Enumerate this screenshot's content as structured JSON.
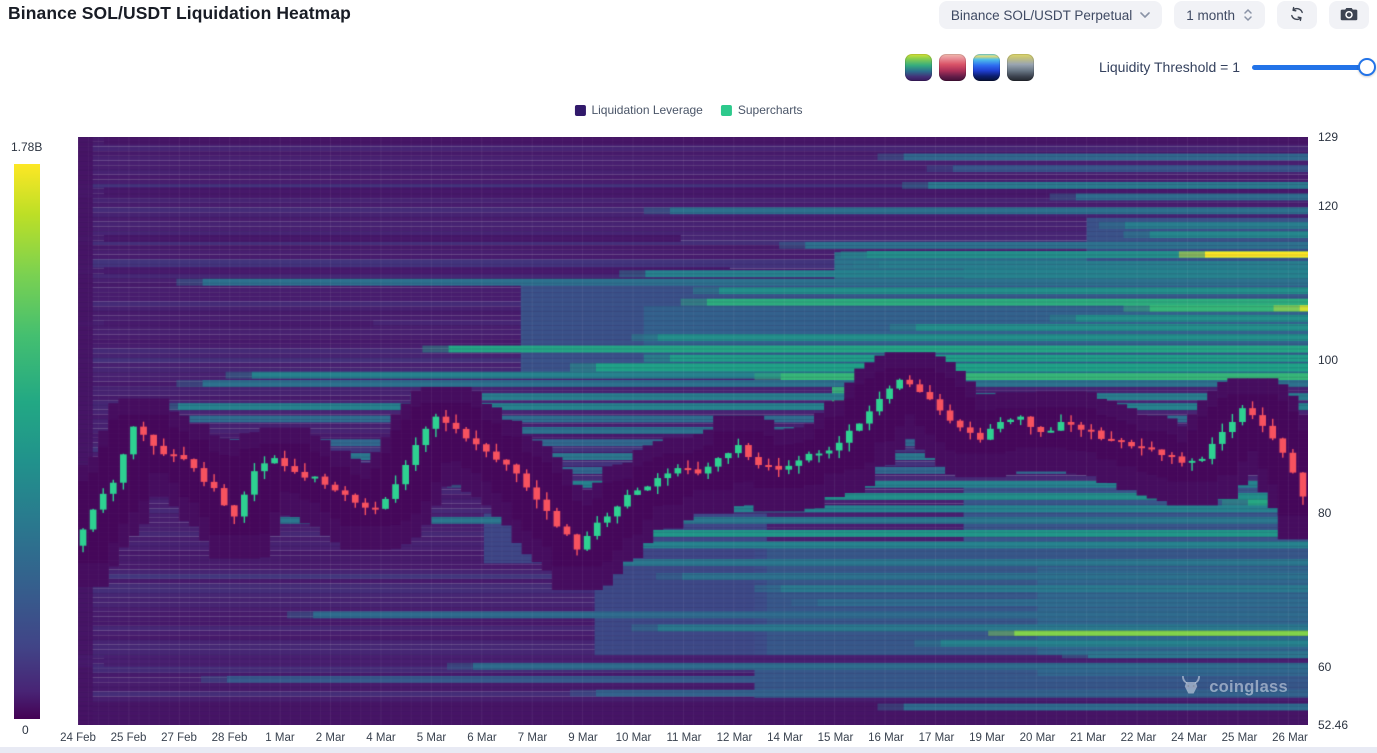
{
  "header": {
    "title": "Binance SOL/USDT Liquidation Heatmap"
  },
  "controls": {
    "symbol_dropdown": {
      "value": "Binance SOL/USDT Perpetual"
    },
    "period_dropdown": {
      "value": "1 month"
    },
    "threshold": {
      "label": "Liquidity Threshold = 1",
      "value": 1,
      "slider_position": "max"
    },
    "palette_buttons": [
      {
        "name": "viridis"
      },
      {
        "name": "red-magma"
      },
      {
        "name": "blue"
      },
      {
        "name": "gray-yellow"
      }
    ]
  },
  "legend": {
    "items": [
      {
        "label": "Liquidation Leverage",
        "color": "#31196b"
      },
      {
        "label": "Supercharts",
        "color": "#2dc98c"
      }
    ]
  },
  "colorbar": {
    "max_label": "1.78B",
    "min_label": "0",
    "colormap": "viridis"
  },
  "watermark": {
    "text": "coinglass"
  },
  "chart_data": {
    "type": "heatmap",
    "subtype": "liquidation-heatmap-with-candlestick-overlay",
    "title": "Binance SOL/USDT Liquidation Heatmap",
    "colormap": "viridis",
    "colorbar": {
      "min_label": "0",
      "max_label": "1.78B"
    },
    "y_axis": {
      "min": 52.46,
      "max": 129,
      "side": "right",
      "ticks": [
        {
          "value": 129,
          "label": "129"
        },
        {
          "value": 120,
          "label": "120"
        },
        {
          "value": 100,
          "label": "100"
        },
        {
          "value": 80,
          "label": "80"
        },
        {
          "value": 60,
          "label": "60"
        },
        {
          "value": 52.46,
          "label": "52.46"
        }
      ]
    },
    "x_axis": {
      "labels": [
        "24 Feb",
        "25 Feb",
        "27 Feb",
        "28 Feb",
        "1 Mar",
        "2 Mar",
        "4 Mar",
        "5 Mar",
        "6 Mar",
        "7 Mar",
        "9 Mar",
        "10 Mar",
        "11 Mar",
        "12 Mar",
        "14 Mar",
        "15 Mar",
        "16 Mar",
        "17 Mar",
        "19 Mar",
        "20 Mar",
        "21 Mar",
        "22 Mar",
        "24 Mar",
        "25 Mar",
        "26 Mar"
      ]
    },
    "price_series": {
      "type": "candlestick",
      "up_color": "#2ed191",
      "down_color": "#f7525f",
      "closes": [
        75.8,
        80.5,
        84.0,
        91.3,
        88.8,
        87.6,
        85.9,
        83.3,
        79.6,
        85.5,
        87.2,
        85.4,
        84.8,
        83.0,
        81.4,
        80.6,
        83.8,
        88.9,
        92.6,
        91.0,
        89.0,
        87.0,
        85.2,
        81.8,
        78.3,
        75.3,
        78.8,
        80.9,
        83.0,
        84.6,
        85.9,
        85.2,
        87.2,
        88.9,
        86.3,
        85.7,
        86.9,
        87.8,
        89.2,
        91.7,
        94.9,
        97.4,
        95.8,
        93.4,
        91.2,
        89.6,
        91.9,
        92.6,
        90.6,
        91.9,
        90.9,
        89.7,
        89.3,
        88.6,
        87.6,
        86.6,
        87.1,
        90.6,
        93.7,
        91.4,
        87.9,
        82.2
      ]
    },
    "liquidity_zones": [
      {
        "p0": 97,
        "p1": 114,
        "sx": 0.615,
        "v": 0.46
      },
      {
        "p0": 98,
        "p1": 112,
        "sx": 0.72,
        "v": 0.5
      },
      {
        "p0": 98,
        "p1": 110,
        "sx": 0.36,
        "v": 0.3
      },
      {
        "p0": 99,
        "p1": 107,
        "sx": 0.46,
        "v": 0.36
      },
      {
        "p0": 56,
        "p1": 76,
        "sx": 0.55,
        "v": 0.33
      },
      {
        "p0": 58,
        "p1": 73,
        "sx": 0.78,
        "v": 0.38
      },
      {
        "p0": 112,
        "p1": 118.5,
        "sx": 0.82,
        "v": 0.3
      },
      {
        "p0": 76,
        "p1": 84,
        "sx": 0.72,
        "v": 0.32
      },
      {
        "p0": 93.5,
        "p1": 96.5,
        "sx": 0.613,
        "ex": 0.66,
        "v": 0.72
      },
      {
        "p0": 73.5,
        "p1": 80,
        "sx": 0.33,
        "ex": 0.56,
        "v": 0.25
      },
      {
        "p0": 60,
        "p1": 74,
        "sx": 0.42,
        "ex": 0.56,
        "v": 0.26
      },
      {
        "p0": 52.46,
        "p1": 55.4,
        "sx": 0,
        "v": 0.08
      },
      {
        "p0": 52.46,
        "p1": 129,
        "sx": 0,
        "ex": 0.012,
        "v": 0.08
      }
    ],
    "bands_format": "[price, x_start_frac, intensity_0to1, thickness_price_units?, x_end_frac?]",
    "liquidity_bands": [
      [
        128.5,
        0,
        0.09,
        1.0,
        1
      ],
      [
        121.8,
        0,
        0.1,
        1.3,
        1
      ],
      [
        115.8,
        0,
        0.1,
        0.9,
        0.49
      ],
      [
        111.6,
        0,
        0.11,
        0.9,
        0.53
      ],
      [
        104.7,
        0,
        0.11,
        0.8,
        0.24
      ],
      [
        60.8,
        0,
        0.13,
        1.5,
        1
      ],
      [
        126.4,
        0.65,
        0.38
      ],
      [
        124.9,
        0.69,
        0.3
      ],
      [
        122.7,
        0.67,
        0.46
      ],
      [
        121.2,
        0.79,
        0.4
      ],
      [
        119.4,
        0.46,
        0.42
      ],
      [
        117.5,
        0.83,
        0.48
      ],
      [
        116.3,
        0.85,
        0.52
      ],
      [
        114.9,
        0.57,
        0.42
      ],
      [
        113.7,
        0.62,
        0.55
      ],
      [
        113.7,
        0.895,
        1.0,
        0.8
      ],
      [
        112.4,
        0.63,
        0.48
      ],
      [
        111.2,
        0.44,
        0.5
      ],
      [
        110.1,
        0.08,
        0.42
      ],
      [
        109.0,
        0.5,
        0.55
      ],
      [
        107.5,
        0.49,
        0.68
      ],
      [
        106.7,
        0.85,
        0.72
      ],
      [
        106.7,
        0.972,
        0.95,
        0.8
      ],
      [
        105.4,
        0.79,
        0.55
      ],
      [
        104.2,
        0.66,
        0.55
      ],
      [
        102.9,
        0.45,
        0.55
      ],
      [
        101.4,
        0.28,
        0.64
      ],
      [
        100.2,
        0.46,
        0.6
      ],
      [
        99.0,
        0.4,
        0.62,
        1.1
      ],
      [
        98.0,
        0.12,
        0.5
      ],
      [
        97.8,
        0.55,
        0.72
      ],
      [
        96.9,
        0.08,
        0.42
      ],
      [
        95.2,
        0.27,
        0.48
      ],
      [
        93.9,
        0.06,
        0.5
      ],
      [
        92.3,
        0.04,
        0.4
      ],
      [
        90.8,
        0.28,
        0.42
      ],
      [
        89.2,
        0.03,
        0.38
      ],
      [
        87.4,
        0.02,
        0.45
      ],
      [
        85.6,
        0.01,
        0.38
      ],
      [
        83.8,
        0.3,
        0.5
      ],
      [
        82.2,
        0.33,
        0.55
      ],
      [
        81.4,
        0.93,
        0.65
      ],
      [
        80.6,
        0.35,
        0.5
      ],
      [
        79.1,
        0.12,
        0.45
      ],
      [
        77.4,
        0.37,
        0.58
      ],
      [
        75.9,
        0.38,
        0.5
      ],
      [
        73.6,
        0.42,
        0.45
      ],
      [
        71.8,
        0.47,
        0.42
      ],
      [
        70.2,
        0.55,
        0.46
      ],
      [
        68.4,
        0.58,
        0.4
      ],
      [
        66.8,
        0.17,
        0.4
      ],
      [
        65.1,
        0.45,
        0.46
      ],
      [
        64.4,
        0.74,
        0.85,
        0.7
      ],
      [
        63.1,
        0.68,
        0.5
      ],
      [
        61.6,
        0.8,
        0.44
      ],
      [
        60.1,
        0.3,
        0.4
      ],
      [
        58.4,
        0.1,
        0.32
      ],
      [
        56.6,
        0.4,
        0.36
      ],
      [
        54.8,
        0.65,
        0.4
      ]
    ]
  }
}
